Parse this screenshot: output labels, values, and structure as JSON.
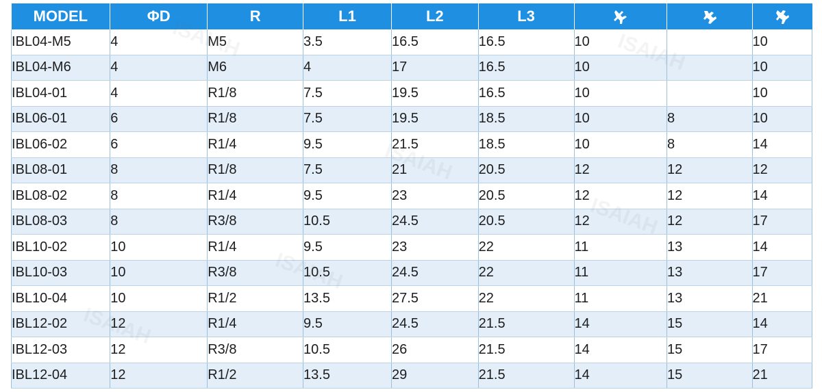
{
  "table": {
    "headers": [
      "MODEL",
      "ΦD",
      "R",
      "L1",
      "L2",
      "L3"
    ],
    "header_icons": [
      "wrench-icon",
      "wrench-icon",
      "wrench-icon"
    ],
    "rows": [
      [
        "IBL04-M5",
        "4",
        "M5",
        "3.5",
        "16.5",
        "16.5",
        "10",
        "",
        "10"
      ],
      [
        "IBL04-M6",
        "4",
        "M6",
        "4",
        "17",
        "16.5",
        "10",
        "",
        "10"
      ],
      [
        "IBL04-01",
        "4",
        "R1/8",
        "7.5",
        "19.5",
        "16.5",
        "10",
        "",
        "10"
      ],
      [
        "IBL06-01",
        "6",
        "R1/8",
        "7.5",
        "19.5",
        "18.5",
        "10",
        "8",
        "10"
      ],
      [
        "IBL06-02",
        "6",
        "R1/4",
        "9.5",
        "21.5",
        "18.5",
        "10",
        "8",
        "14"
      ],
      [
        "IBL08-01",
        "8",
        "R1/8",
        "7.5",
        "21",
        "20.5",
        "12",
        "12",
        "12"
      ],
      [
        "IBL08-02",
        "8",
        "R1/4",
        "9.5",
        "23",
        "20.5",
        "12",
        "12",
        "14"
      ],
      [
        "IBL08-03",
        "8",
        "R3/8",
        "10.5",
        "24.5",
        "20.5",
        "12",
        "12",
        "17"
      ],
      [
        "IBL10-02",
        "10",
        "R1/4",
        "9.5",
        "23",
        "22",
        "11",
        "13",
        "14"
      ],
      [
        "IBL10-03",
        "10",
        "R3/8",
        "10.5",
        "24.5",
        "22",
        "11",
        "13",
        "17"
      ],
      [
        "IBL10-04",
        "10",
        "R1/2",
        "13.5",
        "27.5",
        "22",
        "11",
        "13",
        "21"
      ],
      [
        "IBL12-02",
        "12",
        "R1/4",
        "9.5",
        "24.5",
        "21.5",
        "14",
        "15",
        "14"
      ],
      [
        "IBL12-03",
        "12",
        "R3/8",
        "10.5",
        "26",
        "21.5",
        "14",
        "15",
        "17"
      ],
      [
        "IBL12-04",
        "12",
        "R1/2",
        "13.5",
        "29",
        "21.5",
        "14",
        "15",
        "21"
      ]
    ]
  },
  "colors": {
    "header_bg": "#1e8fe1",
    "header_text": "#ffffff",
    "stripe": "#e3eef9"
  }
}
